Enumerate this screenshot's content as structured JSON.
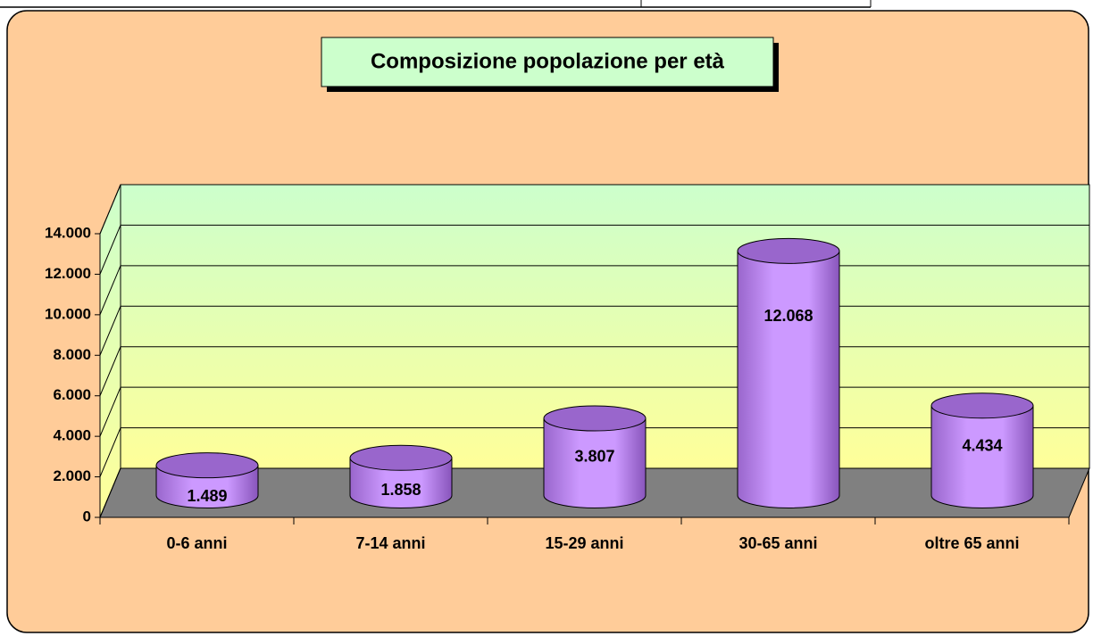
{
  "chart_data": {
    "type": "cylinder",
    "title": "Composizione popolazione per età",
    "categories": [
      "0-6 anni",
      "7-14 anni",
      "15-29 anni",
      "30-65 anni",
      "oltre 65 anni"
    ],
    "values": [
      1489,
      1858,
      3807,
      12068,
      4434
    ],
    "value_labels": [
      "1.489",
      "1.858",
      "3.807",
      "12.068",
      "4.434"
    ],
    "color": "#CC99FF",
    "ylim": [
      0,
      14000
    ],
    "yticks": [
      0,
      {
        "value": 2000,
        "label": "2.000"
      },
      {
        "value": 4000,
        "label": "4.000"
      },
      {
        "value": 6000,
        "label": "6.000"
      },
      {
        "value": 8000,
        "label": "8.000"
      },
      {
        "value": 10000,
        "label": "10.000"
      },
      {
        "value": 12000,
        "label": "12.000"
      },
      {
        "value": 14000,
        "label": "14.000"
      }
    ],
    "grid": true
  }
}
